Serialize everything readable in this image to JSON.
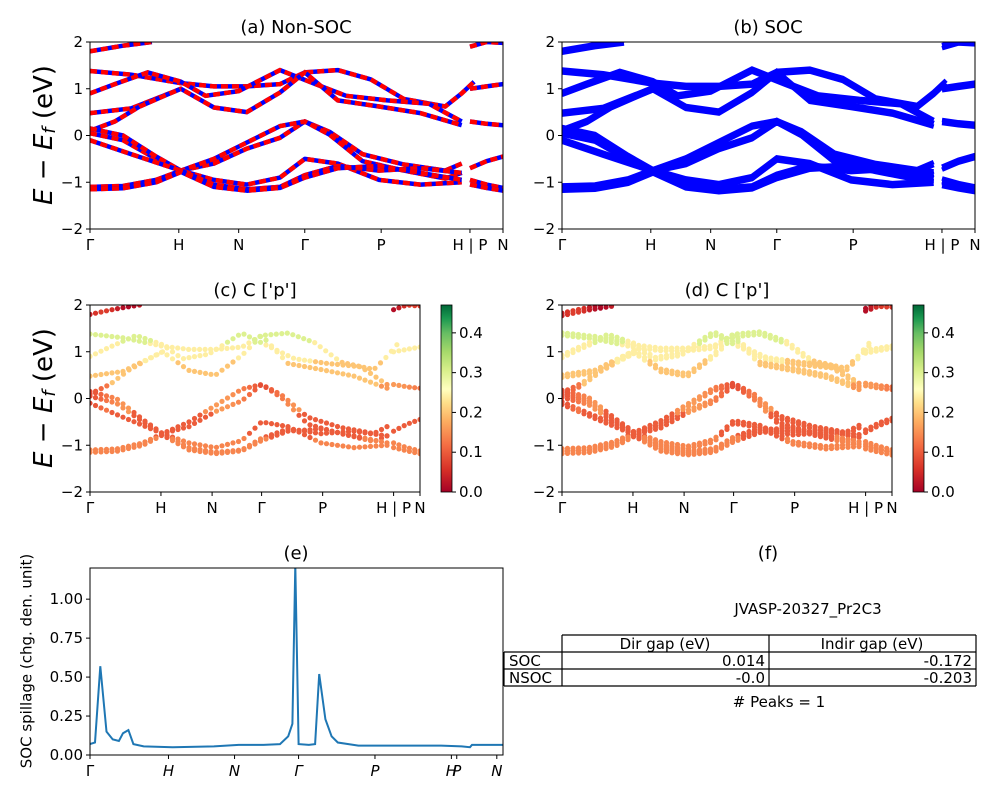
{
  "chart_data": [
    {
      "id": "a",
      "type": "line",
      "title": "(a) Non-SOC",
      "ylabel": "$E - E_f$ (eV)",
      "ylim": [
        -2,
        2
      ],
      "yticks": [
        -2,
        -1,
        0,
        1,
        2
      ],
      "xticks": [
        "Γ",
        "H",
        "N",
        "Γ",
        "P",
        "H | P",
        "N"
      ],
      "series": [
        {
          "values": [
            [
              0,
              1.8
            ],
            [
              0.08,
              1.92
            ],
            [
              0.15,
              2.0
            ]
          ]
        },
        {
          "values": [
            [
              0,
              1.38
            ],
            [
              0.1,
              1.3
            ],
            [
              0.22,
              1.12
            ],
            [
              0.3,
              1.05
            ],
            [
              0.38,
              1.05
            ],
            [
              0.46,
              1.1
            ],
            [
              0.52,
              1.35
            ],
            [
              0.6,
              1.4
            ],
            [
              0.68,
              1.2
            ],
            [
              0.76,
              0.78
            ],
            [
              0.86,
              0.62
            ],
            [
              0.9,
              0.9
            ],
            [
              0.93,
              1.15
            ]
          ]
        },
        {
          "values": [
            [
              0,
              0.9
            ],
            [
              0.06,
              1.1
            ],
            [
              0.14,
              1.35
            ],
            [
              0.22,
              1.15
            ],
            [
              0.28,
              0.85
            ],
            [
              0.36,
              0.95
            ],
            [
              0.46,
              1.4
            ],
            [
              0.54,
              1.12
            ],
            [
              0.62,
              0.85
            ],
            [
              0.72,
              0.75
            ],
            [
              0.82,
              0.68
            ],
            [
              0.9,
              0.3
            ]
          ]
        },
        {
          "values": [
            [
              0,
              0.48
            ],
            [
              0.1,
              0.58
            ],
            [
              0.22,
              1.0
            ],
            [
              0.3,
              0.6
            ],
            [
              0.38,
              0.5
            ],
            [
              0.46,
              0.92
            ],
            [
              0.52,
              1.35
            ],
            [
              0.6,
              0.75
            ],
            [
              0.7,
              0.62
            ],
            [
              0.8,
              0.48
            ],
            [
              0.9,
              0.22
            ]
          ]
        },
        {
          "values": [
            [
              0,
              0.1
            ],
            [
              0.06,
              0.3
            ],
            [
              0.12,
              0.62
            ],
            [
              0.18,
              0.85
            ],
            [
              0.22,
              1.0
            ]
          ]
        },
        {
          "values": [
            [
              0,
              0.05
            ],
            [
              0.08,
              -0.1
            ],
            [
              0.16,
              -0.5
            ],
            [
              0.22,
              -0.75
            ],
            [
              0.3,
              -0.6
            ],
            [
              0.38,
              -0.28
            ],
            [
              0.46,
              -0.05
            ],
            [
              0.52,
              0.3
            ],
            [
              0.58,
              0.08
            ],
            [
              0.66,
              -0.4
            ],
            [
              0.76,
              -0.62
            ],
            [
              0.86,
              -0.75
            ],
            [
              0.9,
              -0.6
            ]
          ]
        },
        {
          "values": [
            [
              0,
              0.15
            ],
            [
              0.08,
              0.0
            ],
            [
              0.16,
              -0.45
            ],
            [
              0.22,
              -0.75
            ],
            [
              0.3,
              -0.5
            ],
            [
              0.38,
              -0.15
            ],
            [
              0.46,
              0.2
            ],
            [
              0.52,
              0.3
            ],
            [
              0.58,
              0.02
            ],
            [
              0.66,
              -0.55
            ],
            [
              0.76,
              -0.75
            ],
            [
              0.86,
              -0.92
            ],
            [
              0.9,
              -0.8
            ]
          ]
        },
        {
          "values": [
            [
              0,
              -0.1
            ],
            [
              0.1,
              -0.4
            ],
            [
              0.22,
              -0.75
            ],
            [
              0.3,
              -0.95
            ],
            [
              0.38,
              -1.05
            ],
            [
              0.46,
              -0.9
            ],
            [
              0.52,
              -0.5
            ],
            [
              0.6,
              -0.6
            ],
            [
              0.7,
              -0.95
            ],
            [
              0.8,
              -1.05
            ],
            [
              0.9,
              -1.0
            ]
          ]
        },
        {
          "values": [
            [
              0,
              -1.1
            ],
            [
              0.08,
              -1.08
            ],
            [
              0.16,
              -0.95
            ],
            [
              0.22,
              -0.75
            ],
            [
              0.3,
              -1.05
            ],
            [
              0.38,
              -1.15
            ],
            [
              0.46,
              -1.1
            ],
            [
              0.52,
              -0.85
            ],
            [
              0.6,
              -0.65
            ],
            [
              0.7,
              -0.75
            ],
            [
              0.8,
              -0.7
            ],
            [
              0.9,
              -0.8
            ]
          ]
        },
        {
          "values": [
            [
              0,
              -1.15
            ],
            [
              0.08,
              -1.13
            ],
            [
              0.16,
              -1.0
            ],
            [
              0.22,
              -0.78
            ],
            [
              0.3,
              -1.1
            ],
            [
              0.38,
              -1.18
            ],
            [
              0.46,
              -1.12
            ],
            [
              0.52,
              -0.9
            ],
            [
              0.6,
              -0.7
            ],
            [
              0.7,
              -0.65
            ],
            [
              0.8,
              -0.8
            ],
            [
              0.9,
              -0.95
            ]
          ]
        },
        {
          "values": [
            [
              0.92,
              0.3
            ],
            [
              0.96,
              0.25
            ],
            [
              1.0,
              0.22
            ]
          ]
        },
        {
          "values": [
            [
              0.92,
              1.0
            ],
            [
              0.96,
              1.05
            ],
            [
              1.0,
              1.1
            ]
          ]
        },
        {
          "values": [
            [
              0.92,
              1.9
            ],
            [
              0.96,
              2.0
            ],
            [
              1.0,
              1.98
            ]
          ]
        },
        {
          "values": [
            [
              0.92,
              -0.7
            ],
            [
              0.96,
              -0.55
            ],
            [
              1.0,
              -0.45
            ]
          ]
        },
        {
          "values": [
            [
              0.92,
              -0.95
            ],
            [
              0.96,
              -1.05
            ],
            [
              1.0,
              -1.12
            ]
          ]
        },
        {
          "values": [
            [
              0.92,
              -1.05
            ],
            [
              0.96,
              -1.12
            ],
            [
              1.0,
              -1.18
            ]
          ]
        }
      ]
    },
    {
      "id": "b",
      "type": "line",
      "title": "(b) SOC",
      "ylim": [
        -2,
        2
      ],
      "yticks": [
        -2,
        -1,
        0,
        1,
        2
      ],
      "xticks": [
        "Γ",
        "H",
        "N",
        "Γ",
        "P",
        "H | P",
        "N"
      ]
    },
    {
      "id": "c",
      "type": "scatter",
      "title": "(c)  C ['p']",
      "ylabel": "$E - E_f$ (eV)",
      "ylim": [
        -2,
        2
      ],
      "yticks": [
        -2,
        -1,
        0,
        1,
        2
      ],
      "xticks": [
        "Γ",
        "H",
        "N",
        "Γ",
        "P",
        "H | P",
        "N"
      ],
      "colorbar": {
        "ticks": [
          "0.0",
          "0.1",
          "0.2",
          "0.3",
          "0.4"
        ],
        "range": [
          0,
          0.47
        ],
        "colormap": "RdYlGn"
      }
    },
    {
      "id": "d",
      "type": "scatter",
      "title": "(d) C ['p']",
      "ylim": [
        -2,
        2
      ],
      "yticks": [
        -2,
        -1,
        0,
        1,
        2
      ],
      "xticks": [
        "Γ",
        "H",
        "N",
        "Γ",
        "P",
        "H | P",
        "N"
      ],
      "colorbar": {
        "ticks": [
          "0.0",
          "0.1",
          "0.2",
          "0.3",
          "0.4"
        ],
        "range": [
          0,
          0.47
        ],
        "colormap": "RdYlGn"
      }
    },
    {
      "id": "e",
      "type": "line",
      "title": "(e)",
      "ylabel": "SOC spillage (chg. den. unit)",
      "ylim": [
        0,
        1.2
      ],
      "yticks": [
        "0.00",
        "0.25",
        "0.50",
        "0.75",
        "1.00"
      ],
      "xticks": [
        "Γ",
        "H",
        "N",
        "Γ",
        "P",
        "H",
        "P",
        "N"
      ],
      "series": [
        {
          "color": "#1f77b4",
          "values": [
            [
              0,
              0.07
            ],
            [
              0.012,
              0.08
            ],
            [
              0.025,
              0.57
            ],
            [
              0.04,
              0.15
            ],
            [
              0.055,
              0.1
            ],
            [
              0.07,
              0.09
            ],
            [
              0.08,
              0.14
            ],
            [
              0.093,
              0.16
            ],
            [
              0.105,
              0.07
            ],
            [
              0.13,
              0.055
            ],
            [
              0.2,
              0.05
            ],
            [
              0.3,
              0.055
            ],
            [
              0.36,
              0.065
            ],
            [
              0.42,
              0.065
            ],
            [
              0.46,
              0.07
            ],
            [
              0.48,
              0.12
            ],
            [
              0.49,
              0.2
            ],
            [
              0.497,
              1.22
            ],
            [
              0.505,
              0.07
            ],
            [
              0.53,
              0.065
            ],
            [
              0.545,
              0.07
            ],
            [
              0.555,
              0.52
            ],
            [
              0.57,
              0.23
            ],
            [
              0.585,
              0.12
            ],
            [
              0.6,
              0.08
            ],
            [
              0.65,
              0.06
            ],
            [
              0.75,
              0.06
            ],
            [
              0.85,
              0.06
            ],
            [
              0.9,
              0.055
            ],
            [
              0.92,
              0.05
            ],
            [
              0.925,
              0.065
            ],
            [
              0.96,
              0.065
            ],
            [
              1.0,
              0.065
            ]
          ]
        }
      ]
    },
    {
      "id": "f",
      "type": "table",
      "title": "(f)",
      "subtitle": "JVASP-20327_Pr2C3",
      "columns": [
        "Dir gap (eV)",
        "Indir gap (eV)"
      ],
      "rows": [
        {
          "label": "SOC",
          "dir": "0.014",
          "indir": "-0.172"
        },
        {
          "label": "NSOC",
          "dir": "-0.0",
          "indir": "-0.203"
        }
      ],
      "footer": "# Peaks = 1"
    }
  ],
  "style": {
    "nsoc_color_a": "#0000ff",
    "nsoc_color_b": "#ff0000",
    "soc_color": "#0000ff",
    "spillage_color": "#1f77b4"
  }
}
